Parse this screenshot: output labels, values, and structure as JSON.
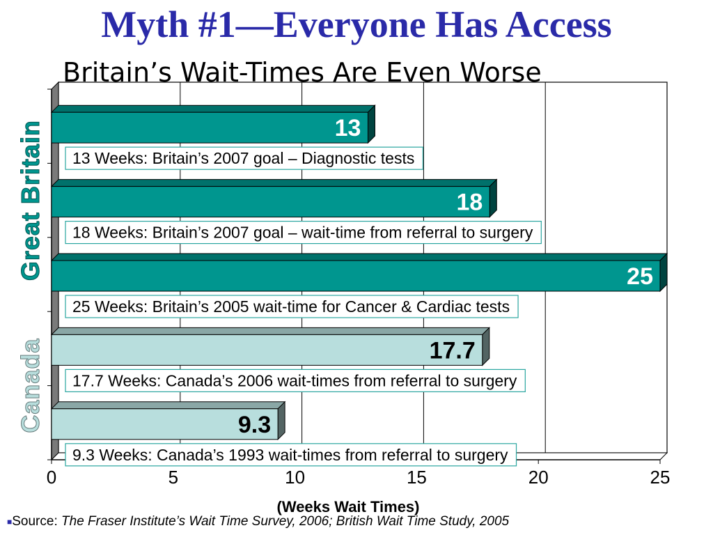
{
  "title": "Myth #1—Everyone Has Access",
  "subtitle": "Britain’s Wait-Times Are Even Worse",
  "source": {
    "prefix": "Source: ",
    "reference": "The Fraser Institute’s Wait Time Survey, 2006; British Wait Time Study, 2005"
  },
  "colors": {
    "title": "#2a2aa8",
    "britain_bar": "#00968f",
    "canada_bar": "#b8dedd",
    "label_border": "#2aa6a0"
  },
  "chart_data": {
    "type": "bar",
    "orientation": "horizontal",
    "style": "3d",
    "xlabel": "(Weeks Wait Times)",
    "xlim": [
      0,
      25
    ],
    "xticks": [
      0,
      5,
      10,
      15,
      20,
      25
    ],
    "grid": true,
    "groups": [
      {
        "name": "Great Britain",
        "bars": [
          0,
          1,
          2
        ]
      },
      {
        "name": "Canada",
        "bars": [
          3,
          4
        ]
      }
    ],
    "bars": [
      {
        "value": 13,
        "label": "13",
        "group": "Great Britain",
        "annotation": "13 Weeks: Britain’s 2007 goal – Diagnostic tests"
      },
      {
        "value": 18,
        "label": "18",
        "group": "Great Britain",
        "annotation": "18 Weeks: Britain’s 2007 goal – wait-time from referral to surgery"
      },
      {
        "value": 25,
        "label": "25",
        "group": "Great Britain",
        "annotation": "25 Weeks: Britain’s 2005 wait-time for Cancer & Cardiac tests"
      },
      {
        "value": 17.7,
        "label": "17.7",
        "group": "Canada",
        "annotation": "17.7 Weeks: Canada’s 2006 wait-times from referral to surgery"
      },
      {
        "value": 9.3,
        "label": "9.3",
        "group": "Canada",
        "annotation": "9.3 Weeks: Canada’s 1993 wait-times from referral to surgery"
      }
    ]
  }
}
